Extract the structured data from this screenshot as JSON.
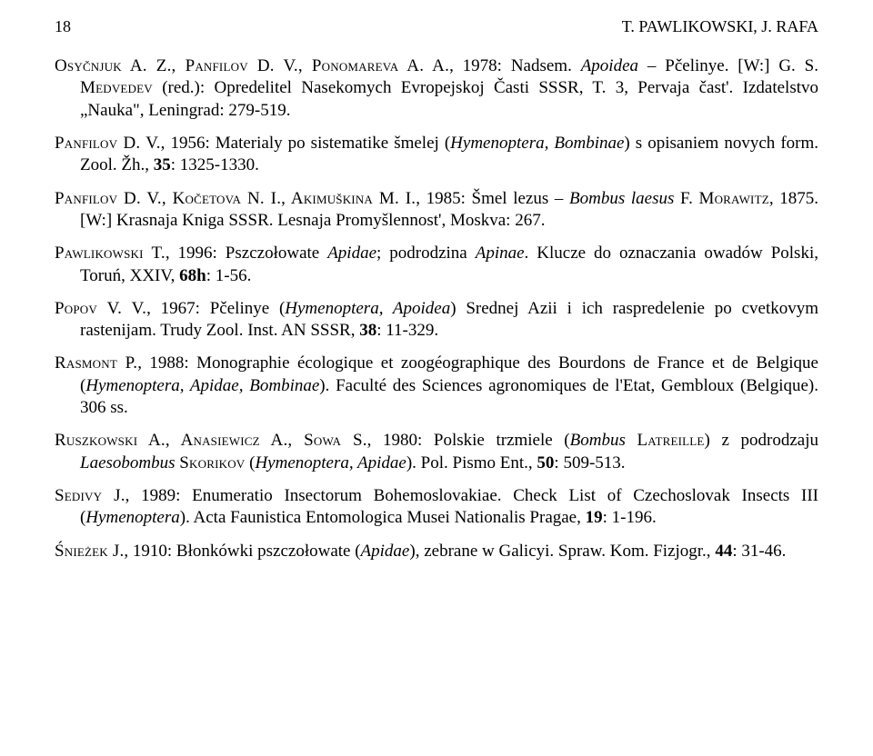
{
  "header": {
    "page_number": "18",
    "running_title": "T. PAWLIKOWSKI, J. RAFA"
  },
  "refs": [
    {
      "authors_sc": "Osyčnjuk A. Z., Panfilov D. V., Ponomareva A. A.",
      "rest": ", 1978: Nadsem. ",
      "ital1": "Apoidea",
      "rest2": " – Pčelinye. [W:] G. S. ",
      "authors_sc2": "Medvedev",
      "rest3": " (red.): Opredelitel Nasekomych Evropejskoj Časti SSSR, T. 3, Pervaja čast'. Izdatelstvo „Nauka\", Leningrad: 279-519."
    },
    {
      "authors_sc": "Panfilov D. V.",
      "rest": ", 1956: Materialy po sistematike šmelej (",
      "ital1": "Hymenoptera, Bombinae",
      "rest2": ") s opisaniem novych form. Zool. Žh., ",
      "bold1": "35",
      "rest3": ": 1325-1330."
    },
    {
      "authors_sc": "Panfilov D. V., Kočetova N. I., Akimuškina M. I.",
      "rest": ", 1985: Šmel lezus – ",
      "ital1": "Bombus laesus",
      "rest2": " F. ",
      "authors_sc2": "Morawitz",
      "rest3": ", 1875. [W:] Krasnaja Kniga SSSR. Lesnaja Promyšlennost', Moskva: 267."
    },
    {
      "authors_sc": "Pawlikowski T.",
      "rest": ", 1996: Pszczołowate ",
      "ital1": "Apidae",
      "rest2": "; podrodzina ",
      "ital2": "Apinae",
      "rest3": ". Klucze do oznaczania owadów Polski, Toruń, XXIV, ",
      "bold1": "68h",
      "rest4": ": 1-56."
    },
    {
      "authors_sc": "Popov V. V.",
      "rest": ", 1967: Pčelinye (",
      "ital1": "Hymenoptera, Apoidea",
      "rest2": ") Srednej Azii i ich raspredelenie po cvetkovym rastenijam. Trudy Zool. Inst. AN SSSR, ",
      "bold1": "38",
      "rest3": ": 11-329."
    },
    {
      "authors_sc": "Rasmont P.",
      "rest": ", 1988: Monographie écologique et zoogéographique des Bourdons de France et de Belgique (",
      "ital1": "Hymenoptera, Apidae, Bombinae",
      "rest2": "). Faculté des Sciences agronomiques de l'Etat, Gembloux (Belgique). 306 ss."
    },
    {
      "authors_sc": "Ruszkowski A., Anasiewicz A., Sowa S.",
      "rest": ", 1980: Polskie trzmiele (",
      "ital1": "Bombus",
      "rest2": " ",
      "authors_sc2": "Latreille",
      "rest3": ") z podrodzaju ",
      "ital2": "Laesobombus",
      "rest4": " ",
      "authors_sc3": "Skorikov",
      "rest5": " (",
      "ital3": "Hymenoptera, Apidae",
      "rest6": "). Pol. Pismo Ent., ",
      "bold1": "50",
      "rest7": ": 509-513."
    },
    {
      "authors_sc": "Sedivy J.",
      "rest": ", 1989: Enumeratio Insectorum Bohemoslovakiae. Check List of Czechoslovak Insects III (",
      "ital1": "Hymenoptera",
      "rest2": "). Acta Faunistica Entomologica Musei Nationalis Pragae, ",
      "bold1": "19",
      "rest3": ": 1-196."
    },
    {
      "authors_sc": "Śnieżek J.",
      "rest": ", 1910: Błonkówki pszczołowate (",
      "ital1": "Apidae",
      "rest2": "), zebrane w Galicyi. Spraw. Kom. Fizjogr., ",
      "bold1": "44",
      "rest3": ": 31-46."
    }
  ]
}
